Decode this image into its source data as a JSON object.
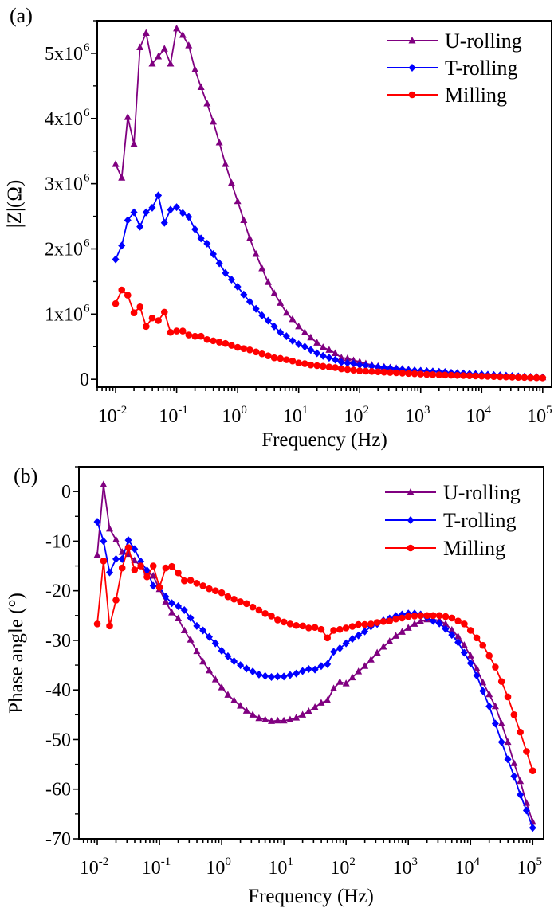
{
  "chart_data": [
    {
      "type": "line",
      "panel_label": "(a)",
      "xlabel": "Frequency (Hz)",
      "ylabel": "|Z|(Ω)",
      "x_scale": "log",
      "xlim": [
        0.005,
        140000
      ],
      "ylim": [
        -120000,
        5500000
      ],
      "grid": false,
      "legend_position": "top-right",
      "x_ticks": [
        0.01,
        0.1,
        1,
        10,
        100,
        1000,
        10000,
        100000
      ],
      "x_tick_labels": [
        {
          "base": "10",
          "exp": "-2"
        },
        {
          "base": "10",
          "exp": "-1"
        },
        {
          "base": "10",
          "exp": "0"
        },
        {
          "base": "10",
          "exp": "1"
        },
        {
          "base": "10",
          "exp": "2"
        },
        {
          "base": "10",
          "exp": "3"
        },
        {
          "base": "10",
          "exp": "4"
        },
        {
          "base": "10",
          "exp": "5"
        }
      ],
      "y_ticks": [
        0,
        1000000,
        2000000,
        3000000,
        4000000,
        5000000
      ],
      "y_tick_labels": [
        {
          "base": "0",
          "exp": ""
        },
        {
          "base": "1x10",
          "exp": "6"
        },
        {
          "base": "2x10",
          "exp": "6"
        },
        {
          "base": "3x10",
          "exp": "6"
        },
        {
          "base": "4x10",
          "exp": "6"
        },
        {
          "base": "5x10",
          "exp": "6"
        }
      ],
      "x": [
        0.01,
        0.0126,
        0.0158,
        0.02,
        0.0251,
        0.0316,
        0.0398,
        0.0501,
        0.0631,
        0.0794,
        0.1,
        0.126,
        0.158,
        0.2,
        0.251,
        0.316,
        0.398,
        0.501,
        0.631,
        0.794,
        1,
        1.26,
        1.58,
        2,
        2.51,
        3.16,
        3.98,
        5.01,
        6.31,
        7.94,
        10,
        12.6,
        15.8,
        20,
        25.1,
        31.6,
        39.8,
        50.1,
        63.1,
        79.4,
        100,
        126,
        158,
        200,
        251,
        316,
        398,
        501,
        631,
        794,
        1000,
        1260,
        1580,
        2000,
        2510,
        3160,
        3980,
        5010,
        6310,
        7940,
        10000,
        12600,
        15800,
        20000,
        25100,
        31600,
        39800,
        50100,
        63100,
        79400,
        100000
      ],
      "series": [
        {
          "name": "U-rolling",
          "color": "#800080",
          "marker": "triangle",
          "values": [
            3300000.0,
            3090000.0,
            4020000.0,
            3610000.0,
            5090000.0,
            5310000.0,
            4840000.0,
            4950000.0,
            5070000.0,
            4840000.0,
            5380000.0,
            5280000.0,
            5120000.0,
            4750000.0,
            4480000.0,
            4230000.0,
            3950000.0,
            3630000.0,
            3300000.0,
            3010000.0,
            2730000.0,
            2440000.0,
            2160000.0,
            1920000.0,
            1700000.0,
            1490000.0,
            1320000.0,
            1170000.0,
            1020000.0,
            920000.0,
            810000.0,
            720000.0,
            640000.0,
            560000.0,
            490000.0,
            450000.0,
            400000.0,
            330000.0,
            320000.0,
            290000.0,
            270000.0,
            240000.0,
            220000.0,
            200000.0,
            190000.0,
            180000.0,
            170000.0,
            160000.0,
            150000.0,
            140000.0,
            130000.0,
            125000.0,
            120000.0,
            115000.0,
            110000.0,
            100000.0,
            95000.0,
            90000.0,
            85000.0,
            80000.0,
            75000.0,
            70000.0,
            65000.0,
            60000.0,
            55000.0,
            50000.0,
            45000.0,
            40000.0,
            37000.0,
            34000.0,
            30000.0
          ]
        },
        {
          "name": "T-rolling",
          "color": "#0000ff",
          "marker": "diamond",
          "values": [
            1840000.0,
            2050000.0,
            2440000.0,
            2560000.0,
            2340000.0,
            2560000.0,
            2630000.0,
            2820000.0,
            2400000.0,
            2600000.0,
            2640000.0,
            2550000.0,
            2490000.0,
            2300000.0,
            2160000.0,
            2080000.0,
            1920000.0,
            1780000.0,
            1630000.0,
            1530000.0,
            1420000.0,
            1300000.0,
            1190000.0,
            1080000.0,
            980000.0,
            900000.0,
            810000.0,
            720000.0,
            660000.0,
            590000.0,
            540000.0,
            500000.0,
            450000.0,
            400000.0,
            360000.0,
            330000.0,
            300000.0,
            260000.0,
            250000.0,
            240000.0,
            220000.0,
            210000.0,
            200000.0,
            190000.0,
            180000.0,
            170000.0,
            160000.0,
            150000.0,
            140000.0,
            135000.0,
            130000.0,
            125000.0,
            120000.0,
            115000.0,
            110000.0,
            100000.0,
            95000.0,
            90000.0,
            85000.0,
            80000.0,
            75000.0,
            70000.0,
            65000.0,
            60000.0,
            55000.0,
            50000.0,
            45000.0,
            40000.0,
            37000.0,
            34000.0,
            30000.0
          ]
        },
        {
          "name": "Milling",
          "color": "#ff0000",
          "marker": "circle",
          "values": [
            1160000.0,
            1370000.0,
            1290000.0,
            1020000.0,
            1110000.0,
            810000.0,
            940000.0,
            900000.0,
            1030000.0,
            720000.0,
            740000.0,
            740000.0,
            680000.0,
            660000.0,
            660000.0,
            610000.0,
            590000.0,
            570000.0,
            550000.0,
            520000.0,
            490000.0,
            470000.0,
            450000.0,
            420000.0,
            390000.0,
            360000.0,
            330000.0,
            320000.0,
            300000.0,
            280000.0,
            250000.0,
            240000.0,
            220000.0,
            210000.0,
            200000.0,
            190000.0,
            180000.0,
            160000.0,
            150000.0,
            140000.0,
            130000.0,
            125000.0,
            120000.0,
            115000.0,
            110000.0,
            105000.0,
            100000.0,
            95000.0,
            90000.0,
            85000.0,
            80000.0,
            75000.0,
            72000.0,
            69000.0,
            66000.0,
            63000.0,
            60000.0,
            57000.0,
            54000.0,
            51000.0,
            48000.0,
            45000.0,
            42000.0,
            39000.0,
            36000.0,
            33000.0,
            30000.0,
            28000.0,
            26000.0,
            24000.0,
            22000.0
          ]
        }
      ]
    },
    {
      "type": "line",
      "panel_label": "(b)",
      "xlabel": "Frequency (Hz)",
      "ylabel": "Phase angle (°)",
      "x_scale": "log",
      "xlim": [
        0.00507,
        150000
      ],
      "ylim": [
        -70,
        5
      ],
      "grid": false,
      "legend_position": "top-right",
      "x_ticks": [
        0.01,
        0.1,
        1,
        10,
        100,
        1000,
        10000,
        100000
      ],
      "x_tick_labels": [
        {
          "base": "10",
          "exp": "-2"
        },
        {
          "base": "10",
          "exp": "-1"
        },
        {
          "base": "10",
          "exp": "0"
        },
        {
          "base": "10",
          "exp": "1"
        },
        {
          "base": "10",
          "exp": "2"
        },
        {
          "base": "10",
          "exp": "3"
        },
        {
          "base": "10",
          "exp": "4"
        },
        {
          "base": "10",
          "exp": "5"
        }
      ],
      "y_ticks": [
        0,
        -10,
        -20,
        -30,
        -40,
        -50,
        -60,
        -70
      ],
      "y_tick_labels": [
        {
          "base": "0",
          "exp": ""
        },
        {
          "base": "-10",
          "exp": ""
        },
        {
          "base": "-20",
          "exp": ""
        },
        {
          "base": "-30",
          "exp": ""
        },
        {
          "base": "-40",
          "exp": ""
        },
        {
          "base": "-50",
          "exp": ""
        },
        {
          "base": "-60",
          "exp": ""
        },
        {
          "base": "-70",
          "exp": ""
        }
      ],
      "x": [
        0.01,
        0.0126,
        0.0158,
        0.02,
        0.0251,
        0.0316,
        0.0398,
        0.0501,
        0.0631,
        0.0794,
        0.1,
        0.126,
        0.158,
        0.2,
        0.251,
        0.316,
        0.398,
        0.501,
        0.631,
        0.794,
        1,
        1.26,
        1.58,
        2,
        2.51,
        3.16,
        3.98,
        5.01,
        6.31,
        7.94,
        10,
        12.6,
        15.8,
        20,
        25.1,
        31.6,
        39.8,
        50.1,
        63.1,
        79.4,
        100,
        126,
        158,
        200,
        251,
        316,
        398,
        501,
        631,
        794,
        1000,
        1260,
        1580,
        2000,
        2510,
        3160,
        3980,
        5010,
        6310,
        7940,
        10000,
        12600,
        15800,
        20000,
        25100,
        31600,
        39800,
        50100,
        63100,
        79400,
        100000
      ],
      "series": [
        {
          "name": "U-rolling",
          "color": "#800080",
          "marker": "triangle",
          "values": [
            -12.8,
            1.4,
            -7.5,
            -9.7,
            -12.2,
            -12.6,
            -13.9,
            -15.0,
            -16.2,
            -17.0,
            -19.7,
            -22.2,
            -24.4,
            -25.6,
            -28.0,
            -29.9,
            -32.2,
            -34.3,
            -36.1,
            -37.9,
            -39.5,
            -41.0,
            -42.1,
            -43.2,
            -44.2,
            -45.0,
            -45.7,
            -46.0,
            -46.3,
            -46.2,
            -46.2,
            -46.0,
            -45.6,
            -45.0,
            -44.3,
            -43.5,
            -42.6,
            -42.1,
            -39.7,
            -38.4,
            -38.7,
            -37.5,
            -36.3,
            -35.2,
            -33.9,
            -32.5,
            -31.3,
            -30.2,
            -29.1,
            -28.3,
            -27.5,
            -26.7,
            -26.2,
            -25.8,
            -25.8,
            -26.0,
            -26.7,
            -27.9,
            -29.2,
            -31.0,
            -33.1,
            -35.7,
            -38.5,
            -40.9,
            -43.3,
            -46.8,
            -50.5,
            -54.8,
            -58.4,
            -62.8,
            -66.6
          ]
        },
        {
          "name": "T-rolling",
          "color": "#0000ff",
          "marker": "diamond",
          "values": [
            -6.1,
            -10.0,
            -16.3,
            -13.6,
            -13.6,
            -9.8,
            -11.6,
            -14.1,
            -15.9,
            -19.0,
            -19.2,
            -21.2,
            -22.5,
            -23.1,
            -23.9,
            -25.5,
            -27.1,
            -28.0,
            -29.3,
            -30.6,
            -32.1,
            -33.2,
            -34.2,
            -35.0,
            -35.7,
            -36.3,
            -36.9,
            -37.2,
            -37.4,
            -37.3,
            -37.3,
            -37.0,
            -36.7,
            -36.2,
            -35.8,
            -35.9,
            -35.2,
            -34.8,
            -32.3,
            -31.6,
            -30.6,
            -29.7,
            -29.0,
            -28.2,
            -27.2,
            -26.7,
            -26.0,
            -25.6,
            -25.1,
            -24.8,
            -24.6,
            -24.6,
            -24.8,
            -25.4,
            -26.1,
            -26.6,
            -27.7,
            -28.9,
            -30.4,
            -32.5,
            -34.6,
            -37.1,
            -40.2,
            -43.3,
            -46.8,
            -50.5,
            -54.0,
            -57.4,
            -61.1,
            -64.3,
            -67.8
          ]
        },
        {
          "name": "Milling",
          "color": "#ff0000",
          "marker": "circle",
          "values": [
            -26.7,
            -14.0,
            -27.1,
            -21.9,
            -15.4,
            -11.3,
            -15.8,
            -15.0,
            -17.2,
            -15.0,
            -19.3,
            -15.4,
            -15.1,
            -16.4,
            -18.0,
            -17.9,
            -18.5,
            -19.0,
            -19.6,
            -20.0,
            -20.4,
            -21.2,
            -21.7,
            -22.2,
            -22.6,
            -23.3,
            -23.9,
            -24.6,
            -25.1,
            -25.9,
            -26.3,
            -26.7,
            -27.0,
            -27.1,
            -27.5,
            -27.4,
            -27.8,
            -29.5,
            -28.0,
            -27.8,
            -27.5,
            -27.2,
            -26.8,
            -26.8,
            -26.7,
            -26.4,
            -26.2,
            -26.1,
            -25.7,
            -25.5,
            -25.2,
            -25.1,
            -25.0,
            -25.0,
            -25.0,
            -25.0,
            -25.2,
            -25.5,
            -26.1,
            -26.7,
            -28.0,
            -29.5,
            -31.0,
            -33.1,
            -35.4,
            -38.3,
            -41.4,
            -45.0,
            -48.5,
            -52.4,
            -56.3
          ]
        }
      ]
    }
  ]
}
